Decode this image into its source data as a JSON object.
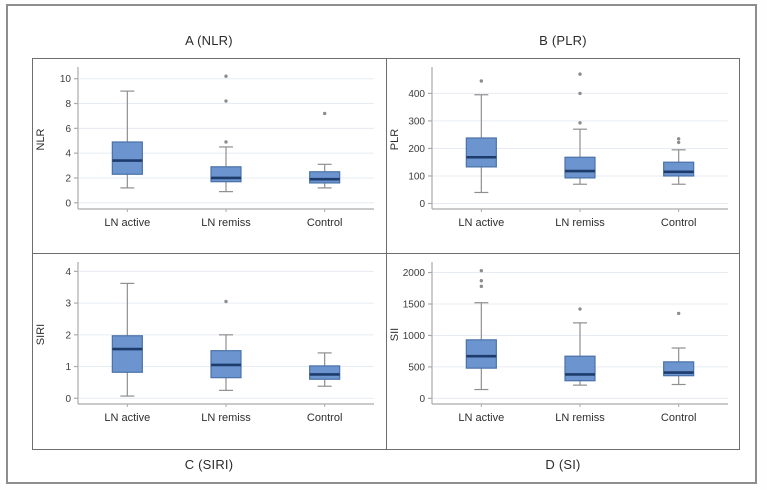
{
  "figure": {
    "outer_border_color": "#8d8d8d",
    "grid_border_color": "#6e6e6e",
    "background": "#ffffff"
  },
  "styles": {
    "box_fill": "#6c94ce",
    "box_stroke": "#4a72a8",
    "median_color": "#1d3c6b",
    "whisker_color": "#8f8f8f",
    "outlier_color": "#8d8d8d",
    "gridline_color": "#e7ecf3",
    "axis_color": "#aaaaaa",
    "tick_text_color": "#3c3c3c",
    "label_text_color": "#2e2e2e"
  },
  "chart_data": [
    {
      "type": "box",
      "title": "A (NLR)",
      "ylabel": "NLR",
      "categories": [
        "LN active",
        "LN remiss",
        "Control"
      ],
      "yticks": [
        0,
        2,
        4,
        6,
        8,
        10
      ],
      "ylim": [
        -0.5,
        10.7
      ],
      "grid": true,
      "legend": "none",
      "boxes": [
        {
          "category": "LN active",
          "min": 1.2,
          "q1": 2.3,
          "median": 3.4,
          "q3": 4.9,
          "max": 9.0,
          "outliers": []
        },
        {
          "category": "LN remiss",
          "min": 0.9,
          "q1": 1.7,
          "median": 2.0,
          "q3": 2.9,
          "max": 4.5,
          "outliers": [
            4.9,
            8.2,
            10.2
          ]
        },
        {
          "category": "Control",
          "min": 1.2,
          "q1": 1.6,
          "median": 1.9,
          "q3": 2.5,
          "max": 3.1,
          "outliers": [
            7.2
          ]
        }
      ]
    },
    {
      "type": "box",
      "title": "B (PLR)",
      "ylabel": "PLR",
      "categories": [
        "LN active",
        "LN remiss",
        "Control"
      ],
      "yticks": [
        0,
        100,
        200,
        300,
        400
      ],
      "ylim": [
        -20,
        485
      ],
      "grid": true,
      "legend": "none",
      "boxes": [
        {
          "category": "LN active",
          "min": 40,
          "q1": 133,
          "median": 168,
          "q3": 238,
          "max": 395,
          "outliers": [
            445
          ]
        },
        {
          "category": "LN remiss",
          "min": 70,
          "q1": 93,
          "median": 118,
          "q3": 168,
          "max": 270,
          "outliers": [
            293,
            400,
            470
          ]
        },
        {
          "category": "Control",
          "min": 70,
          "q1": 100,
          "median": 115,
          "q3": 150,
          "max": 195,
          "outliers": [
            222,
            235
          ]
        }
      ]
    },
    {
      "type": "box",
      "title": "C (SIRI)",
      "ylabel": "SIRI",
      "categories": [
        "LN active",
        "LN remiss",
        "Control"
      ],
      "yticks": [
        0,
        1,
        2,
        3,
        4
      ],
      "ylim": [
        -0.18,
        4.2
      ],
      "grid": true,
      "legend": "none",
      "boxes": [
        {
          "category": "LN active",
          "min": 0.07,
          "q1": 0.82,
          "median": 1.55,
          "q3": 1.97,
          "max": 3.62,
          "outliers": []
        },
        {
          "category": "LN remiss",
          "min": 0.25,
          "q1": 0.65,
          "median": 1.05,
          "q3": 1.5,
          "max": 2.0,
          "outliers": [
            3.05
          ]
        },
        {
          "category": "Control",
          "min": 0.38,
          "q1": 0.6,
          "median": 0.75,
          "q3": 1.02,
          "max": 1.43,
          "outliers": []
        }
      ]
    },
    {
      "type": "box",
      "title": "D (SI)",
      "ylabel": "SII",
      "categories": [
        "LN active",
        "LN remiss",
        "Control"
      ],
      "yticks": [
        0,
        500,
        1000,
        1500,
        2000
      ],
      "ylim": [
        -90,
        2120
      ],
      "grid": true,
      "legend": "none",
      "boxes": [
        {
          "category": "LN active",
          "min": 140,
          "q1": 480,
          "median": 670,
          "q3": 930,
          "max": 1520,
          "outliers": [
            1780,
            1870,
            2030
          ]
        },
        {
          "category": "LN remiss",
          "min": 210,
          "q1": 280,
          "median": 380,
          "q3": 670,
          "max": 1200,
          "outliers": [
            1420
          ]
        },
        {
          "category": "Control",
          "min": 220,
          "q1": 360,
          "median": 410,
          "q3": 580,
          "max": 800,
          "outliers": [
            1350
          ]
        }
      ]
    }
  ]
}
